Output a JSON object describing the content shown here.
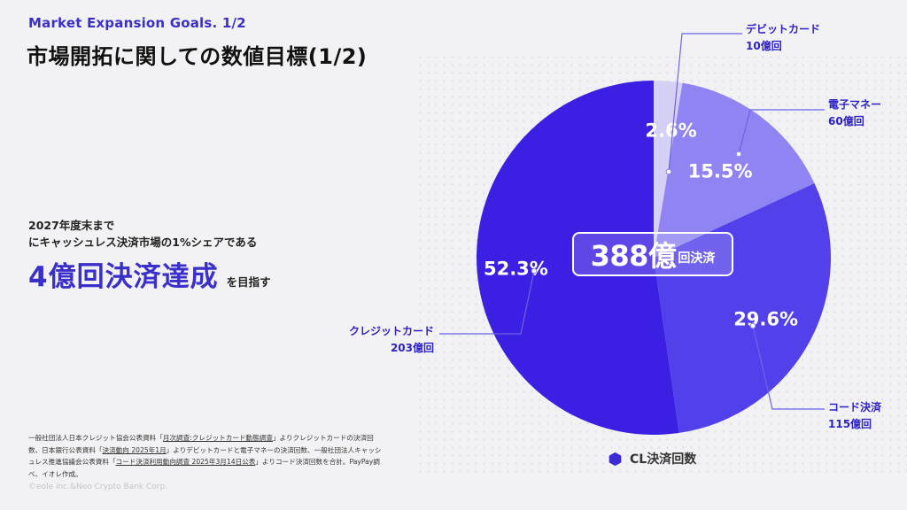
{
  "header": {
    "subtitle": "Market Expansion Goals. 1/2",
    "title": "市場開拓に関しての数値目標(1/2)"
  },
  "goal": {
    "line1": "2027年度末まで",
    "line2": "にキャッシュレス決済市場の1%シェアである",
    "big": "4億回決済達成",
    "suffix": "を目指す"
  },
  "footnote": {
    "p1": "一般社団法人日本クレジット協会公表資料「",
    "l1": "月次調査:クレジットカード動態調査",
    "p2": "」よりクレジットカードの決済回数、日本銀行公表資料「",
    "l2": "決済動向 2025年1月",
    "p3": "」よりデビットカードと電子マネーの決済回数、一般社団法人キャッシュレス推進協議会公表資料「",
    "l3": "コード決済利用動向調査 2025年3月14日公表",
    "p4": "」よりコード決済回数を合計。PayPay調べ、イオレ作成。"
  },
  "copyright": "©eole inc.&Neo Crypto Bank Corp.",
  "center": {
    "value": "388億",
    "unit": "回決済"
  },
  "legend": {
    "label": "CL決済回数",
    "color": "#3b2bd6"
  },
  "chart_data": {
    "type": "pie",
    "title": "CL決済回数",
    "total_label": "388億回決済",
    "start_angle_deg": 0,
    "direction": "clockwise",
    "slices": [
      {
        "name": "デビットカード",
        "count": "10億回",
        "percent": 2.6,
        "label": "2.6%",
        "color": "#d4d0f6"
      },
      {
        "name": "電子マネー",
        "count": "60億回",
        "percent": 15.5,
        "label": "15.5%",
        "color": "#8f84f2"
      },
      {
        "name": "コード決済",
        "count": "115億回",
        "percent": 29.6,
        "label": "29.6%",
        "color": "#5241ea"
      },
      {
        "name": "クレジットカード",
        "count": "203億回",
        "percent": 52.3,
        "label": "52.3%",
        "color": "#3b1fe2"
      }
    ]
  }
}
